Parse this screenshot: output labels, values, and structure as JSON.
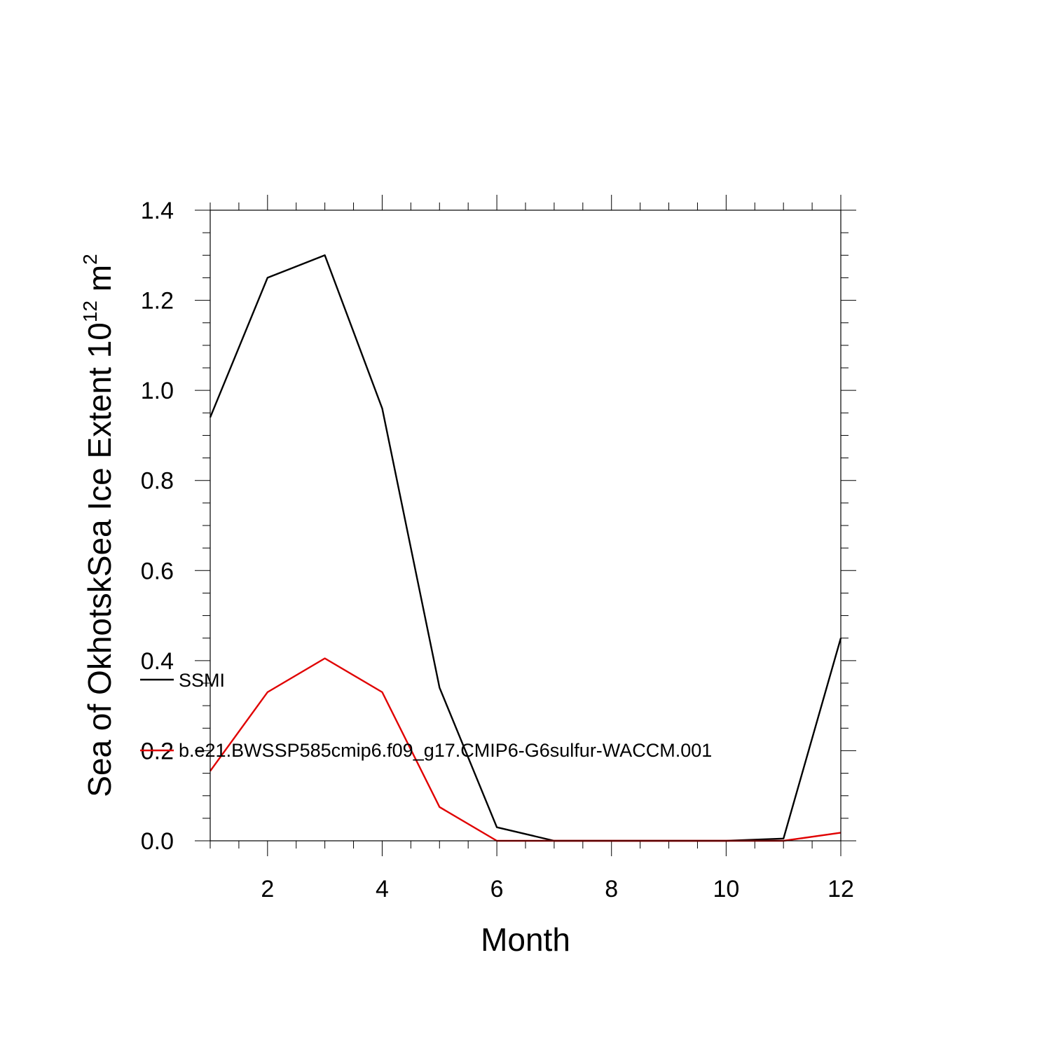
{
  "chart_data": {
    "type": "line",
    "title": "",
    "xlabel": "Month",
    "ylabel": {
      "prefix": "Sea of OkhotskSea Ice Extent 10",
      "exponent": "12",
      "middle": " m",
      "exponent2": "2"
    },
    "xlim": [
      1,
      12
    ],
    "ylim": [
      0,
      1.4
    ],
    "x_ticks": [
      2,
      4,
      6,
      8,
      10,
      12
    ],
    "x_tick_labels": [
      "2",
      "4",
      "6",
      "8",
      "10",
      "12"
    ],
    "y_ticks": [
      0,
      0.2,
      0.4,
      0.6,
      0.8,
      1.0,
      1.2,
      1.4
    ],
    "y_tick_labels": [
      "0.0",
      "0.2",
      "0.4",
      "0.6",
      "0.8",
      "1.0",
      "1.2",
      "1.4"
    ],
    "grid": false,
    "legend_placement": "left",
    "x": [
      1,
      2,
      3,
      4,
      5,
      6,
      7,
      8,
      9,
      10,
      11,
      12
    ],
    "series": [
      {
        "name": "SSMI",
        "color": "#000000",
        "values": [
          0.94,
          1.25,
          1.3,
          0.96,
          0.34,
          0.03,
          0.0,
          0.0,
          0.0,
          0.0,
          0.005,
          0.45
        ]
      },
      {
        "name": "b.e21.BWSSP585cmip6.f09_g17.CMIP6-G6sulfur-WACCM.001",
        "color": "#e00000",
        "values": [
          0.155,
          0.33,
          0.405,
          0.33,
          0.075,
          0.0,
          0.0,
          0.0,
          0.0,
          0.0,
          0.0,
          0.018
        ]
      }
    ]
  }
}
